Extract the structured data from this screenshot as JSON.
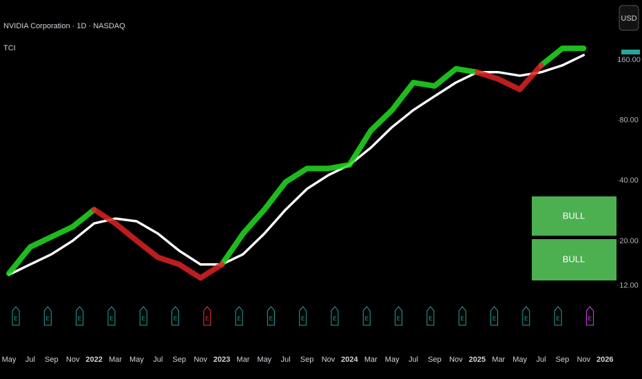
{
  "header": {
    "symbol": "NVIDIA Corporation · 1D · NASDAQ",
    "indicator": "TCI",
    "currency": "USD"
  },
  "chart_data": {
    "type": "line",
    "log_scale": true,
    "categories": [
      "May",
      "Jul",
      "Sep",
      "Nov",
      "2022",
      "Mar",
      "May",
      "Jul",
      "Sep",
      "Nov",
      "2023",
      "Mar",
      "May",
      "Jul",
      "Sep",
      "Nov",
      "2024",
      "Mar",
      "May",
      "Jul",
      "Sep",
      "Nov",
      "2025",
      "Mar",
      "May",
      "Jul",
      "Sep",
      "Nov",
      "2026"
    ],
    "series": [
      {
        "color": "#ffffff",
        "values": [
          13.6,
          15.3,
          17.2,
          20.1,
          24.5,
          25.9,
          25.1,
          21.8,
          17.9,
          15.3,
          15.3,
          17.2,
          21.8,
          28.7,
          36.4,
          42.6,
          48.0,
          58.4,
          74.0,
          90.0,
          105.5,
          123.4,
          138.9,
          138.9,
          133.5,
          138.9,
          150.3,
          169.1,
          null
        ]
      },
      {
        "color": "#22dd22",
        "values": [
          13.8,
          18.7,
          21.0,
          23.6,
          28.7,
          null,
          null,
          null,
          null,
          null,
          15.3,
          21.8,
          28.7,
          39.4,
          46.0,
          46.0,
          48.0,
          71.1,
          90.0,
          123.4,
          118.6,
          144.5,
          138.9,
          null,
          null,
          150.3,
          182.8,
          182.8,
          null
        ]
      },
      {
        "color": "#dd2222",
        "values": [
          null,
          null,
          null,
          null,
          28.7,
          24.5,
          20.1,
          16.6,
          15.3,
          13.1,
          15.3,
          null,
          null,
          null,
          null,
          null,
          null,
          null,
          null,
          null,
          null,
          null,
          138.9,
          128.3,
          113.9,
          150.3,
          null,
          null,
          null
        ]
      }
    ],
    "ylim": [
      10.2,
      294
    ],
    "yticks": [
      {
        "value": 12,
        "label": "12.00"
      },
      {
        "value": 20,
        "label": "20.00"
      },
      {
        "value": 40,
        "label": "40.00"
      },
      {
        "value": 80,
        "label": "80.00"
      },
      {
        "value": 160,
        "label": "160.00"
      }
    ]
  },
  "earnings": [
    {
      "label": "E",
      "color": "#26a69a"
    },
    {
      "label": "E",
      "color": "#26a69a"
    },
    {
      "label": "E",
      "color": "#26a69a"
    },
    {
      "label": "E",
      "color": "#26a69a"
    },
    {
      "label": "E",
      "color": "#26a69a"
    },
    {
      "label": "E",
      "color": "#26a69a"
    },
    {
      "label": "E",
      "color": "#f23645"
    },
    {
      "label": "E",
      "color": "#26a69a"
    },
    {
      "label": "E",
      "color": "#26a69a"
    },
    {
      "label": "E",
      "color": "#26a69a"
    },
    {
      "label": "E",
      "color": "#26a69a"
    },
    {
      "label": "E",
      "color": "#26a69a"
    },
    {
      "label": "E",
      "color": "#26a69a"
    },
    {
      "label": "E",
      "color": "#26a69a"
    },
    {
      "label": "E",
      "color": "#26a69a"
    },
    {
      "label": "E",
      "color": "#26a69a"
    },
    {
      "label": "E",
      "color": "#26a69a"
    },
    {
      "label": "E",
      "color": "#26a69a"
    },
    {
      "label": "E",
      "color": "#e040fb"
    }
  ],
  "status_boxes": [
    "BULL",
    "BULL"
  ]
}
